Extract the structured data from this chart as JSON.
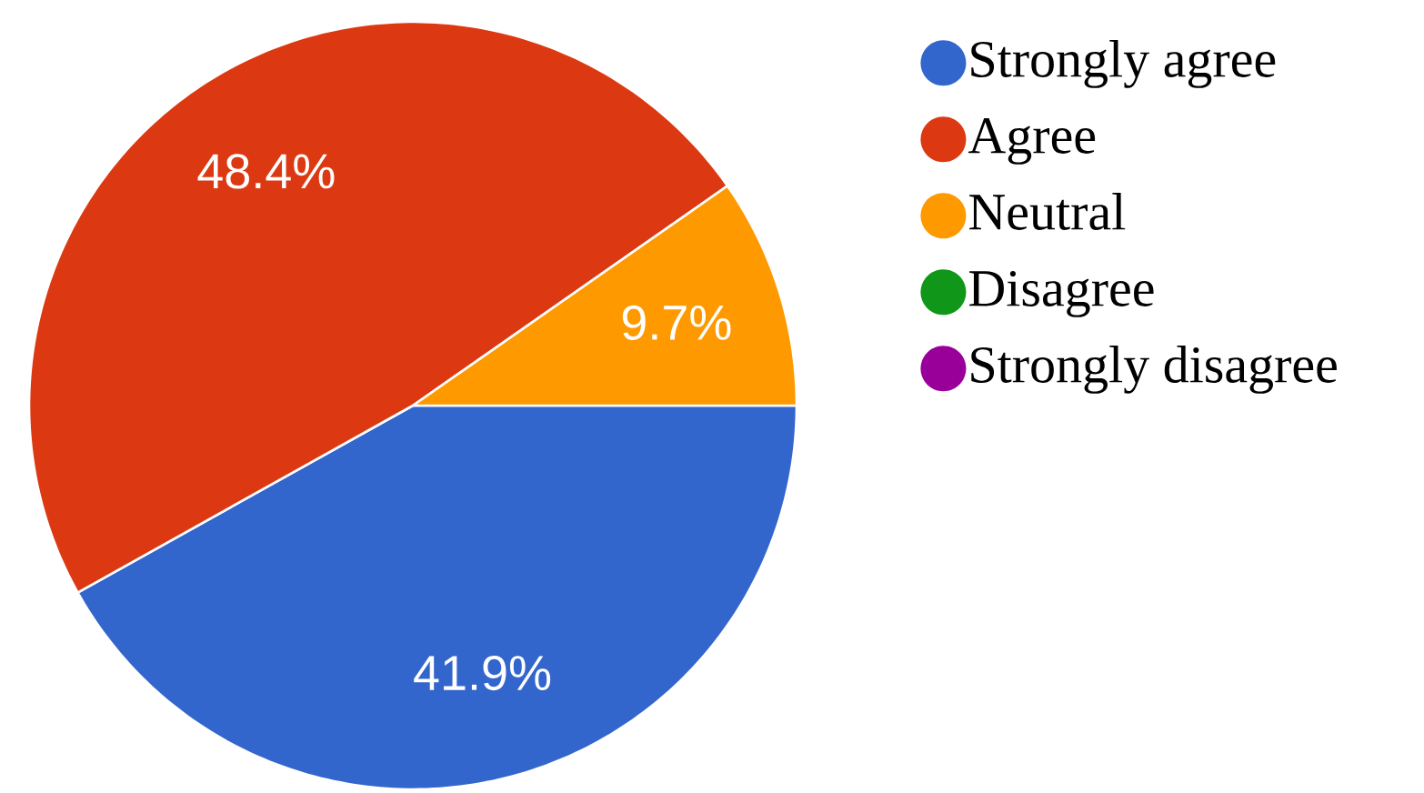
{
  "chart_data": {
    "type": "pie",
    "categories": [
      "Strongly agree",
      "Agree",
      "Neutral",
      "Disagree",
      "Strongly disagree"
    ],
    "values": [
      41.9,
      48.4,
      9.7,
      0,
      0
    ],
    "colors": [
      "#3366cc",
      "#dc3912",
      "#ff9900",
      "#109618",
      "#990099"
    ],
    "value_labels": [
      "41.9%",
      "48.4%",
      "9.7%",
      null,
      null
    ],
    "legend": "right"
  }
}
